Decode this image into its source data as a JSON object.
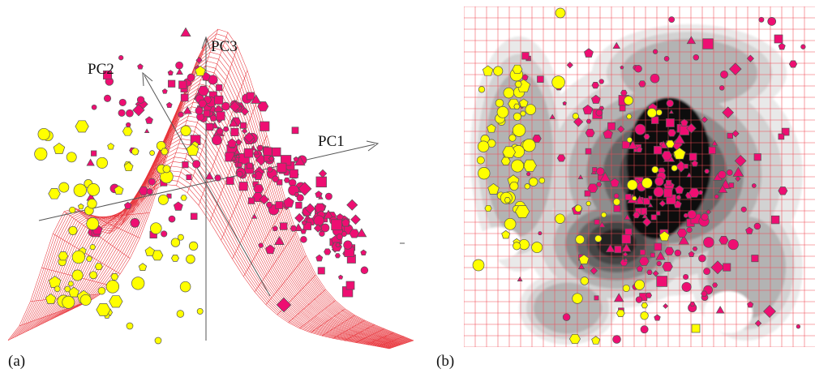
{
  "panel_a": {
    "label": "(a)",
    "axis_pc1": "PC1",
    "axis_pc2": "PC2",
    "axis_pc3": "PC3"
  },
  "panel_b": {
    "label": "(b)"
  },
  "colors": {
    "mesh": "#e8333a",
    "class_magenta": "#ee0e72",
    "class_yellow": "#ffff00",
    "marker_outline": "#555555",
    "density_shades": [
      "#e9e9e9",
      "#d2d2d2",
      "#b3b3b3",
      "#8e8e8e",
      "#666666",
      "#444444",
      "#222222"
    ]
  }
}
